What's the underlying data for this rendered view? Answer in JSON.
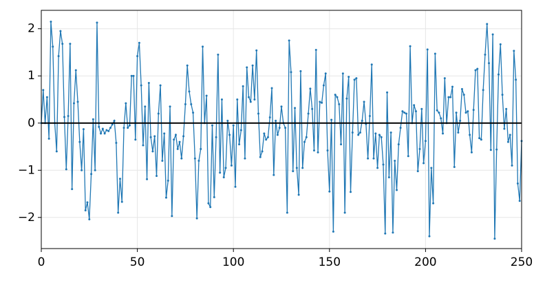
{
  "chart_data": {
    "type": "line",
    "color": "#1f77b4",
    "grid": true,
    "hline": 0,
    "hline_color": "#000000",
    "xlim": [
      0,
      250
    ],
    "xticks": [
      0,
      50,
      100,
      150,
      200,
      250
    ],
    "ylim": [
      -2.66,
      2.39
    ],
    "yticks": [
      {
        "value": -2,
        "label": "−2"
      },
      {
        "value": -1,
        "label": "−1"
      },
      0,
      1,
      2
    ],
    "values": [
      0,
      0.7,
      0,
      0.55,
      -0.33,
      2.15,
      1.62,
      0,
      -0.6,
      1.42,
      1.95,
      1.68,
      0.13,
      -0.98,
      0.15,
      1.68,
      -1.4,
      0.42,
      1.12,
      0.45,
      -0.4,
      -1,
      -0.13,
      -1.85,
      -1.68,
      -2.04,
      -1.08,
      0.08,
      -1,
      2.13,
      -0.08,
      -0.22,
      -0.12,
      -0.22,
      -0.15,
      -0.17,
      -0.1,
      -0.03,
      0.05,
      -0.42,
      -1.9,
      -1.18,
      -1.67,
      -0.1,
      0.42,
      -0.1,
      -0.05,
      1,
      1,
      -0.35,
      1.42,
      1.7,
      0.8,
      -0.47,
      0.35,
      -1.19,
      0.85,
      -0.3,
      -0.6,
      -0.28,
      -1.12,
      0.2,
      0.8,
      -0.8,
      -0.22,
      -1.58,
      -1.22,
      0.35,
      -1.97,
      -0.35,
      -0.25,
      -0.55,
      -0.4,
      -0.75,
      -0.28,
      0.4,
      1.22,
      0.67,
      0.4,
      0.22,
      -0.75,
      -2.02,
      -0.8,
      -0.55,
      1.62,
      0,
      0.58,
      -1.7,
      -1.78,
      -0.05,
      -1.57,
      -0.3,
      1.45,
      -1.05,
      0.5,
      -1.15,
      -0.95,
      0.05,
      -0.25,
      -0.9,
      -0.05,
      -1.35,
      0.5,
      -0.45,
      -0.15,
      0.78,
      -0.75,
      1.18,
      0.55,
      0.45,
      1.22,
      0.5,
      1.54,
      0.2,
      -0.72,
      -0.6,
      -0.22,
      -0.35,
      -0.3,
      0.12,
      0.74,
      -1.1,
      0.05,
      -0.25,
      -0.1,
      0.35,
      0,
      -0.1,
      -1.9,
      1.75,
      1.08,
      -1.02,
      0.32,
      -0.95,
      -1.52,
      1.1,
      -0.95,
      -0.4,
      -0.3,
      0.2,
      0.73,
      0.3,
      -0.58,
      1.55,
      -0.62,
      0.45,
      0.43,
      0.8,
      1.05,
      -0.58,
      -1.45,
      0.07,
      -2.3,
      0.6,
      0.55,
      0.4,
      -0.45,
      1.05,
      -1.9,
      0.52,
      0.98,
      -1.46,
      -0.2,
      0.92,
      0.95,
      -0.25,
      -0.2,
      0.05,
      0.45,
      -0.02,
      -0.75,
      0.15,
      1.24,
      -0.75,
      -0.22,
      -0.95,
      -0.25,
      -0.3,
      -0.88,
      -2.34,
      0.65,
      -1.15,
      -0.2,
      -2.32,
      -0.8,
      -1.42,
      -0.45,
      -0.1,
      0.25,
      0.22,
      0.2,
      -0.7,
      1.63,
      0,
      0.38,
      0.25,
      -1.02,
      -0.55,
      0.3,
      -0.85,
      -0.38,
      1.56,
      -2.4,
      -0.95,
      -1.7,
      1.47,
      0.27,
      0.22,
      0.1,
      -0.22,
      0.95,
      0,
      0.55,
      0.55,
      0.77,
      -0.93,
      0.22,
      -0.2,
      0.05,
      0.72,
      0.6,
      0.22,
      0.25,
      -0.25,
      -0.62,
      0.28,
      1.12,
      1.15,
      -0.32,
      -0.35,
      0.7,
      1.45,
      2.1,
      1.27,
      -0.57,
      1.88,
      -2.45,
      -0.56,
      1.03,
      1.67,
      0.6,
      -0.12,
      0.3,
      -0.4,
      -0.25,
      -0.9,
      1.53,
      0.92,
      -1.28,
      -1.65,
      -0.38
    ]
  }
}
